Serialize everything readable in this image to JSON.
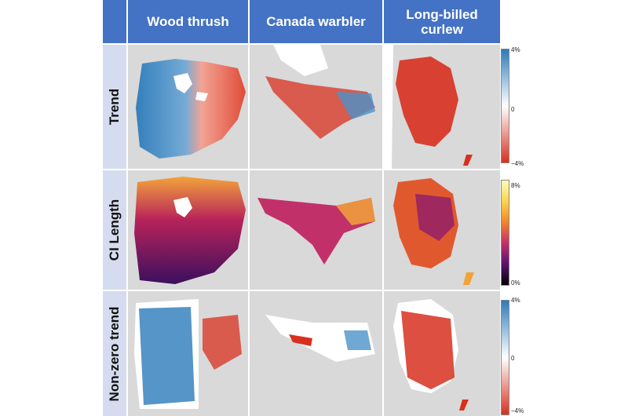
{
  "columns": [
    "Wood thrush",
    "Canada warbler",
    "Long-billed\ncurlew"
  ],
  "rows": [
    "Trend",
    "CI Length",
    "Non-zero trend"
  ],
  "legends": {
    "trend": {
      "max": "4%",
      "mid": "0",
      "min": "−4%"
    },
    "ci": {
      "max": "8%",
      "min": "0%"
    },
    "nonzero": {
      "max": "4%",
      "mid": "0",
      "min": "−4%"
    }
  },
  "colors": {
    "header_bg": "#4472c4",
    "row_label_bg": "#d5dcef",
    "land": "#d9d9d9",
    "increase": "#2b7bba",
    "decrease": "#d7301f",
    "ci_low": "#2d0a4e",
    "ci_high": "#fcd54a"
  }
}
